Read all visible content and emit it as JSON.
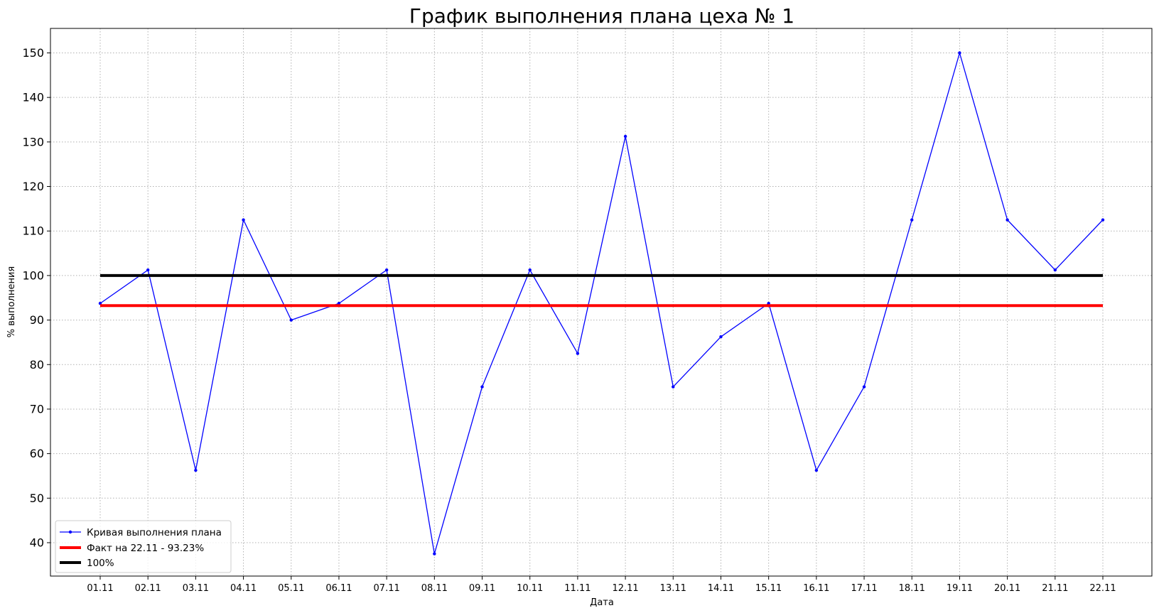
{
  "chart_data": {
    "type": "line",
    "title": "График выполнения плана цеха № 1",
    "xlabel": "Дата",
    "ylabel": "% выполнения",
    "categories": [
      "01.11",
      "02.11",
      "03.11",
      "04.11",
      "05.11",
      "06.11",
      "07.11",
      "08.11",
      "09.11",
      "10.11",
      "11.11",
      "12.11",
      "13.11",
      "14.11",
      "15.11",
      "16.11",
      "17.11",
      "18.11",
      "19.11",
      "20.11",
      "21.11",
      "22.11"
    ],
    "yticks": [
      40,
      50,
      60,
      70,
      80,
      90,
      100,
      110,
      120,
      130,
      140,
      150
    ],
    "ylim": [
      32.5,
      155.5
    ],
    "grid": true,
    "legend_position": "bottom-left",
    "series": [
      {
        "name": "Кривая выполнения плана",
        "color": "#0000ff",
        "style": "line-with-dot-markers",
        "values": [
          93.75,
          101.25,
          56.25,
          112.5,
          90.0,
          93.75,
          101.25,
          37.5,
          75.0,
          101.25,
          82.5,
          131.25,
          75.0,
          86.25,
          93.75,
          56.25,
          75.0,
          112.5,
          150.0,
          112.5,
          101.25,
          112.5
        ]
      },
      {
        "name": "Факт на 22.11 - 93.23%",
        "color": "#ff0000",
        "style": "thick-constant",
        "values": [
          93.23,
          93.23,
          93.23,
          93.23,
          93.23,
          93.23,
          93.23,
          93.23,
          93.23,
          93.23,
          93.23,
          93.23,
          93.23,
          93.23,
          93.23,
          93.23,
          93.23,
          93.23,
          93.23,
          93.23,
          93.23,
          93.23
        ]
      },
      {
        "name": "100%",
        "color": "#000000",
        "style": "thick-constant",
        "values": [
          100,
          100,
          100,
          100,
          100,
          100,
          100,
          100,
          100,
          100,
          100,
          100,
          100,
          100,
          100,
          100,
          100,
          100,
          100,
          100,
          100,
          100
        ]
      }
    ]
  }
}
